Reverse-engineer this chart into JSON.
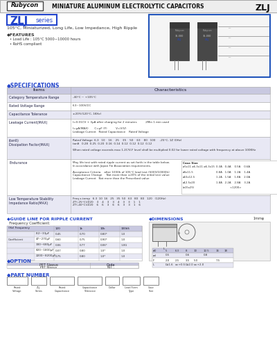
{
  "title_company": "Rubycon",
  "title_main": "MINIATURE ALUMINUM ELECTROLYTIC CAPACITORS",
  "title_series": "ZLJ",
  "series_label": "ZLJ",
  "series_label2": "series",
  "subtitle": "105°C, Miniaturized, Long Life, Low Impedance, High Ripple",
  "features_title": "◆FEATURES",
  "features": [
    "• Load Life : 105°C 5000~10000 hours",
    "• RoHS compliant"
  ],
  "spec_title": "◆SPECIFICATIONS",
  "spec_headers": [
    "Items",
    "Characteristics"
  ],
  "bg_color": "#ffffff",
  "header_bg": "#c8c8e0",
  "row_bg_odd": "#e8e8f4",
  "table_line_color": "#aaaaaa",
  "series_color": "#2244cc",
  "header_text_color": "#111122",
  "body_text_color": "#333333",
  "box_border_color": "#2255bb",
  "ripple_title": "◆GUIDE LINE FOR RIPPLE CURRENT",
  "ripple_subtitle": "  Frequency Coefficient:",
  "dimensions_title": "◆DIMENSIONS",
  "dimensions_note": "1mmφ",
  "option_title": "◆OPTION",
  "part_number_title": "◆PART NUMBER"
}
